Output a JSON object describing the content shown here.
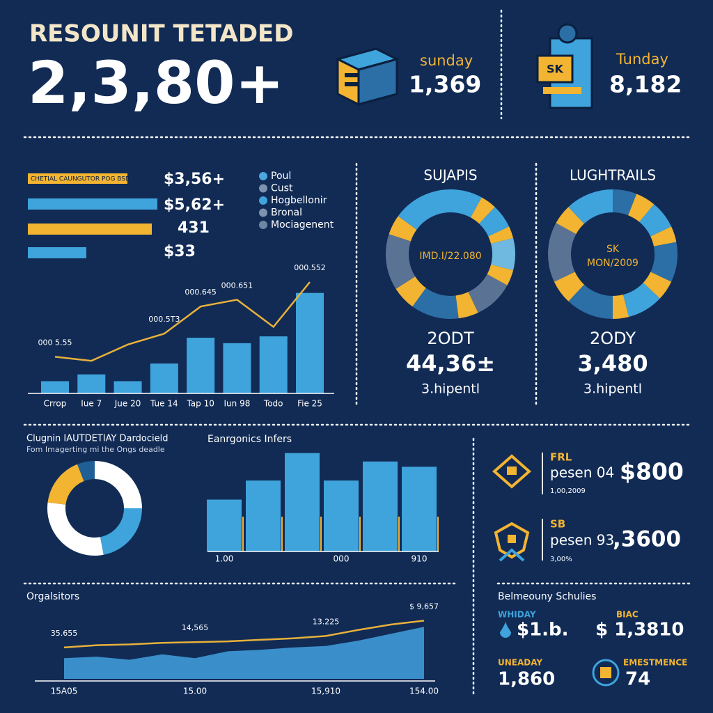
{
  "header": {
    "title": "RESOUNIT TETADED",
    "big_number": "2,3,80+",
    "stats": [
      {
        "label": "sunday",
        "value": "1,369"
      },
      {
        "label": "Tunday",
        "value": "8,182",
        "icon_text": "SK"
      }
    ]
  },
  "chart_data": [
    {
      "type": "bar",
      "orientation": "horizontal",
      "subtitle": "CHETIAL CAUNGUTOR POG BSB",
      "values": [
        93,
        89,
        42
      ],
      "colors": [
        "#3fa3dc",
        "#f3b431",
        "#3fa3dc"
      ],
      "xlim": [
        0,
        100
      ],
      "annotations": [
        "$3,56+",
        "$5,62+",
        "431",
        "$33"
      ],
      "legend": [
        {
          "name": "Poul",
          "color": "#4aa8dc"
        },
        {
          "name": "Cust",
          "color": "#7d93ad"
        },
        {
          "name": "Hogbellonir",
          "color": "#3fa3dc"
        },
        {
          "name": "Bronal",
          "color": "#7d93ad"
        },
        {
          "name": "Mociagenent",
          "color": "#6f86a3"
        }
      ]
    },
    {
      "type": "combo",
      "categories": [
        "Crrop",
        "Iue 7",
        "Jue 20",
        "Tue 14",
        "Tap 10",
        "Iun 98",
        "Todo",
        "Fie 25"
      ],
      "ylim": [
        0,
        100
      ],
      "series": [
        {
          "type": "bar",
          "color": "#3fa3dc",
          "values": [
            9,
            14,
            9,
            22,
            41,
            37,
            42,
            74
          ]
        },
        {
          "type": "line",
          "color": "#e8b13a",
          "values": [
            27,
            24,
            36,
            44,
            64,
            69,
            49,
            82
          ],
          "point_labels": [
            "000 5.55",
            null,
            null,
            "000.5T3",
            "000.645",
            "000.651",
            null,
            "000.552"
          ]
        }
      ]
    },
    {
      "type": "donut",
      "title": "SUJAPIS",
      "center": [
        "IMD.I/22.080"
      ],
      "label": "2ODT",
      "value_text": "44,36±",
      "note": "3.hipentl",
      "values": [
        8,
        4,
        6,
        3,
        8,
        4,
        10,
        5,
        12,
        6,
        14,
        5,
        15
      ],
      "colors": [
        "#3fa3dc",
        "#f3b431",
        "#3fa3dc",
        "#f3b431",
        "#6fb8e0",
        "#f3b431",
        "#5a7394",
        "#f3b431",
        "#2c6ea6",
        "#f3b431",
        "#5a7394",
        "#f3b431",
        "#3fa3dc"
      ]
    },
    {
      "type": "donut",
      "title": "LUGHTRAILS",
      "center": [
        "SK",
        "MON/2009"
      ],
      "label": "2ODY",
      "value_text": "3,480",
      "note": "3.hipentl",
      "values": [
        6,
        5,
        7,
        4,
        10,
        5,
        9,
        4,
        12,
        6,
        15,
        5,
        12
      ],
      "colors": [
        "#2c6ea6",
        "#f3b431",
        "#3fa3dc",
        "#f3b431",
        "#2c6ea6",
        "#f3b431",
        "#3fa3dc",
        "#f3b431",
        "#2c6ea6",
        "#f3b431",
        "#5a7394",
        "#f3b431",
        "#3fa3dc"
      ]
    },
    {
      "type": "donut",
      "title": "Clugnin IAUTDETIAY Dardocield",
      "subtitle": "Fom Imagerting mi the Ongs deadle",
      "values": [
        25,
        22,
        30,
        17,
        6
      ],
      "colors": [
        "#ffffff",
        "#3fa3dc",
        "#ffffff",
        "#f3b431",
        "#1f5f95"
      ]
    },
    {
      "type": "bar",
      "title": "Eanrgonics Infers",
      "categories": [
        "1.00",
        null,
        null,
        "000",
        null,
        "910"
      ],
      "values": [
        49,
        67,
        93,
        67,
        85,
        80
      ],
      "color": "#3fa3dc",
      "ylim": [
        0,
        100
      ]
    },
    {
      "type": "line",
      "title": "Orgalsitors",
      "categories": [
        "15A05",
        null,
        null,
        null,
        "15.00",
        null,
        null,
        null,
        "15,910",
        null,
        null,
        "154.00"
      ],
      "ylim": [
        0,
        100
      ],
      "series": [
        {
          "type": "line",
          "color": "#e8b13a",
          "values": [
            41,
            44,
            45,
            47,
            48,
            49,
            51,
            53,
            56,
            64,
            71,
            76
          ],
          "point_labels": [
            "35.655",
            null,
            null,
            null,
            "14,565",
            null,
            null,
            null,
            "13.225",
            null,
            null,
            "$ 9,657"
          ]
        },
        {
          "type": "area",
          "color": "#3a8fca",
          "values": [
            27,
            29,
            25,
            32,
            27,
            36,
            38,
            41,
            43,
            50,
            59,
            68
          ]
        }
      ]
    }
  ],
  "side_stats": [
    {
      "label": "FRL",
      "text": "pesen 04",
      "value": "$800",
      "note": "1,00,2009"
    },
    {
      "label": "SB",
      "text": "pesen 93",
      "value": ",3600",
      "note": "3,00%"
    }
  ],
  "schedule": {
    "title": "Belmeouny Schulies",
    "items": [
      {
        "label": "WHIDAY",
        "value": "$1.b."
      },
      {
        "label": "BIAC",
        "value": "$ 1,3810"
      },
      {
        "label": "UNEADAY",
        "value": "1,860"
      },
      {
        "label": "EMESTMENCE",
        "value": "74"
      }
    ]
  }
}
